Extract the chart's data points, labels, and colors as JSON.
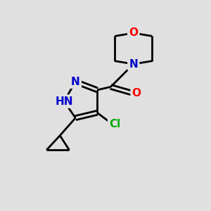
{
  "background_color": "#e0e0e0",
  "bond_color": "#000000",
  "atom_colors": {
    "N": "#0000cc",
    "O": "#ff0000",
    "Cl": "#00aa00",
    "C": "#000000"
  },
  "figsize": [
    3.0,
    3.0
  ],
  "dpi": 100
}
